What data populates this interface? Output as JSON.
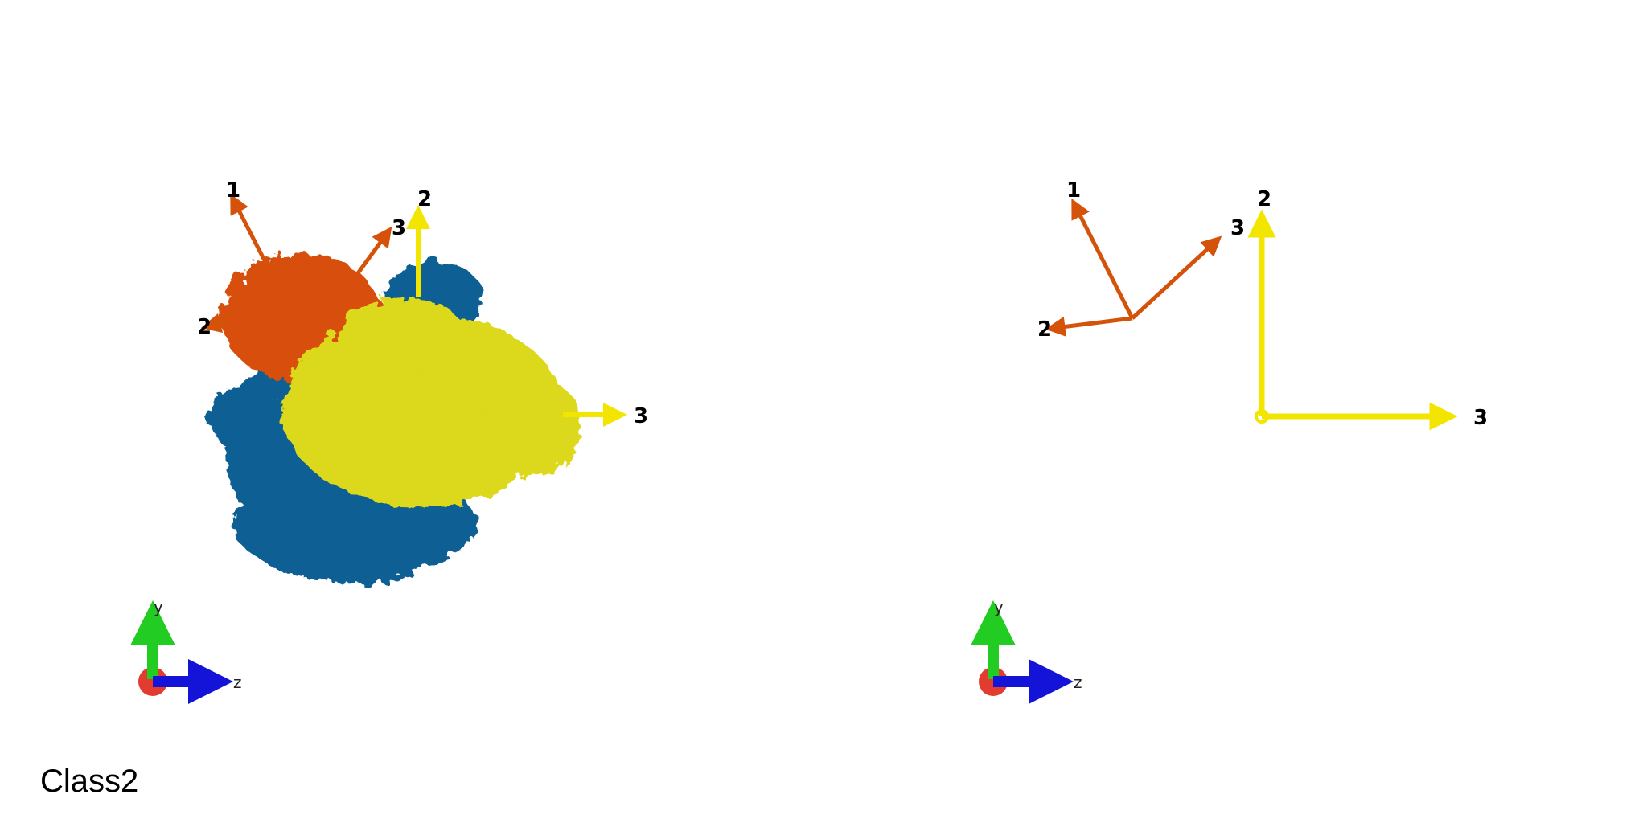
{
  "class_label": "Class2",
  "colors": {
    "orange_axes": "#d4520a",
    "yellow_axes": "#f2e600",
    "blue_density": "#0b5f94",
    "yellow_density": "#dcd81a",
    "orange_density": "#d8500c",
    "triad_x": "#e23b30",
    "triad_y": "#22cc22",
    "triad_z": "#1414d8"
  },
  "panels": [
    {
      "name": "left",
      "orange_axis_labels": [
        "1",
        "2",
        "3"
      ],
      "yellow_axis_labels": [
        "2",
        "3"
      ],
      "triad_labels": {
        "y": "y",
        "z": "z"
      }
    },
    {
      "name": "right",
      "orange_axis_labels": [
        "1",
        "2",
        "3"
      ],
      "yellow_axis_labels": [
        "2",
        "3"
      ],
      "triad_labels": {
        "y": "y",
        "z": "z"
      }
    }
  ]
}
